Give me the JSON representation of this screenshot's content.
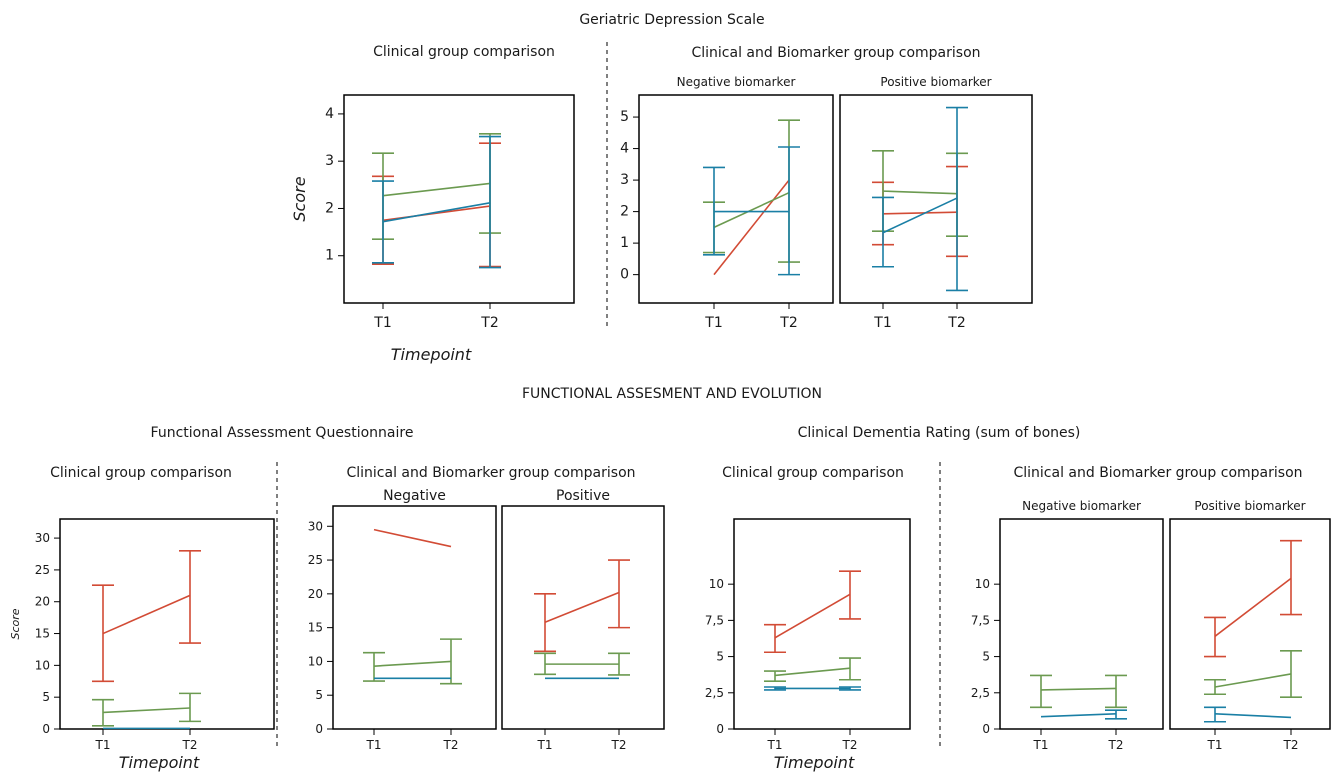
{
  "colors": {
    "red": "#d24b35",
    "green": "#6b9a50",
    "blue": "#1a7fa5"
  },
  "headings": {
    "top": "Geriatric Depression Scale",
    "middle": "FUNCTIONAL ASSESMENT AND EVOLUTION",
    "faq": "Functional Assessment Questionnaire",
    "cdr": "Clinical Dementia Rating (sum of bones)"
  },
  "chart_data": [
    {
      "id": "gds_clinical",
      "type": "line",
      "title": "Clinical group comparison",
      "panel_label": "",
      "categories": [
        "T1",
        "T2"
      ],
      "xlabel": "Timepoint",
      "ylabel": "Score",
      "yticks": [
        "1",
        "2",
        "3",
        "4"
      ],
      "ylim": [
        0,
        4.4
      ],
      "series": [
        {
          "color": "red",
          "values": [
            1.75,
            2.05
          ],
          "err_low": [
            0.82,
            0.77
          ],
          "err_high": [
            2.68,
            3.38
          ]
        },
        {
          "color": "green",
          "values": [
            2.27,
            2.53
          ],
          "err_low": [
            1.35,
            1.48
          ],
          "err_high": [
            3.17,
            3.58
          ]
        },
        {
          "color": "blue",
          "values": [
            1.72,
            2.12
          ],
          "err_low": [
            0.85,
            0.75
          ],
          "err_high": [
            2.58,
            3.52
          ]
        }
      ]
    },
    {
      "id": "gds_neg",
      "type": "line",
      "title": "Clinical and Biomarker group comparison",
      "panel_label": "Negative biomarker",
      "categories": [
        "T1",
        "T2"
      ],
      "xlabel": "",
      "ylabel": "",
      "yticks": [
        "0",
        "1",
        "2",
        "3",
        "4",
        "5"
      ],
      "ylim": [
        -0.9,
        5.7
      ],
      "series": [
        {
          "color": "red",
          "values": [
            0.0,
            3.0
          ],
          "err_low": [
            null,
            null
          ],
          "err_high": [
            null,
            null
          ]
        },
        {
          "color": "green",
          "values": [
            1.5,
            2.6
          ],
          "err_low": [
            0.7,
            0.4
          ],
          "err_high": [
            2.3,
            4.9
          ]
        },
        {
          "color": "blue",
          "values": [
            2.0,
            2.0
          ],
          "err_low": [
            0.63,
            0.0
          ],
          "err_high": [
            3.4,
            4.05
          ]
        }
      ]
    },
    {
      "id": "gds_pos",
      "type": "line",
      "title": "",
      "panel_label": "Positive biomarker",
      "categories": [
        "T1",
        "T2"
      ],
      "xlabel": "",
      "ylabel": "",
      "yticks": [],
      "ylim": [
        -0.9,
        5.7
      ],
      "series": [
        {
          "color": "red",
          "values": [
            1.93,
            1.98
          ],
          "err_low": [
            0.95,
            0.58
          ],
          "err_high": [
            2.93,
            3.43
          ]
        },
        {
          "color": "green",
          "values": [
            2.65,
            2.57
          ],
          "err_low": [
            1.38,
            1.22
          ],
          "err_high": [
            3.93,
            3.85
          ]
        },
        {
          "color": "blue",
          "values": [
            1.33,
            2.43
          ],
          "err_low": [
            0.25,
            -0.5
          ],
          "err_high": [
            2.45,
            5.3
          ]
        }
      ]
    },
    {
      "id": "faq_clinical",
      "type": "line",
      "title": "Clinical group comparison",
      "panel_label": "",
      "categories": [
        "T1",
        "T2"
      ],
      "xlabel": "Timepoint",
      "ylabel": "Score",
      "yticks": [
        "0",
        "5",
        "10",
        "15",
        "20",
        "25",
        "30"
      ],
      "ylim": [
        0,
        33
      ],
      "series": [
        {
          "color": "red",
          "values": [
            15,
            21
          ],
          "err_low": [
            7.5,
            13.5
          ],
          "err_high": [
            22.6,
            28.0
          ]
        },
        {
          "color": "green",
          "values": [
            2.6,
            3.3
          ],
          "err_low": [
            0.5,
            1.2
          ],
          "err_high": [
            4.6,
            5.6
          ]
        },
        {
          "color": "blue",
          "values": [
            0.1,
            0.1
          ],
          "err_low": [
            null,
            null
          ],
          "err_high": [
            null,
            null
          ]
        }
      ]
    },
    {
      "id": "faq_neg",
      "type": "line",
      "title": "Clinical and Biomarker group comparison",
      "panel_label": "Negative",
      "categories": [
        "T1",
        "T2"
      ],
      "xlabel": "",
      "ylabel": "",
      "yticks": [
        "0",
        "5",
        "10",
        "15",
        "20",
        "25",
        "30"
      ],
      "ylim": [
        0,
        33
      ],
      "series": [
        {
          "color": "red",
          "values": [
            29.5,
            27.0
          ],
          "err_low": [
            null,
            null
          ],
          "err_high": [
            null,
            null
          ]
        },
        {
          "color": "green",
          "values": [
            9.3,
            10.0
          ],
          "err_low": [
            7.1,
            6.7
          ],
          "err_high": [
            11.3,
            13.3
          ]
        },
        {
          "color": "blue",
          "values": [
            7.5,
            7.5
          ],
          "err_low": [
            null,
            null
          ],
          "err_high": [
            null,
            null
          ]
        }
      ]
    },
    {
      "id": "faq_pos",
      "type": "line",
      "title": "",
      "panel_label": "Positive",
      "categories": [
        "T1",
        "T2"
      ],
      "xlabel": "",
      "ylabel": "",
      "yticks": [],
      "ylim": [
        0,
        33
      ],
      "series": [
        {
          "color": "red",
          "values": [
            15.8,
            20.2
          ],
          "err_low": [
            11.5,
            15.0
          ],
          "err_high": [
            20.0,
            25.0
          ]
        },
        {
          "color": "green",
          "values": [
            9.6,
            9.6
          ],
          "err_low": [
            8.1,
            8.0
          ],
          "err_high": [
            11.2,
            11.2
          ]
        },
        {
          "color": "blue",
          "values": [
            7.5,
            7.5
          ],
          "err_low": [
            null,
            null
          ],
          "err_high": [
            null,
            null
          ]
        }
      ]
    },
    {
      "id": "cdr_clinical",
      "type": "line",
      "title": "Clinical group comparison",
      "panel_label": "",
      "categories": [
        "T1",
        "T2"
      ],
      "xlabel": "Timepoint",
      "ylabel": "",
      "yticks": [
        "0",
        "2,5",
        "5",
        "7,5",
        "10"
      ],
      "ylim": [
        0,
        14.5
      ],
      "series": [
        {
          "color": "red",
          "values": [
            6.3,
            9.3
          ],
          "err_low": [
            5.3,
            7.6
          ],
          "err_high": [
            7.2,
            10.9
          ]
        },
        {
          "color": "green",
          "values": [
            3.7,
            4.2
          ],
          "err_low": [
            3.3,
            3.4
          ],
          "err_high": [
            4.0,
            4.9
          ]
        },
        {
          "color": "blue",
          "values": [
            2.8,
            2.8
          ],
          "err_low": [
            2.7,
            2.7
          ],
          "err_high": [
            2.9,
            2.9
          ]
        }
      ]
    },
    {
      "id": "cdr_neg",
      "type": "line",
      "title": "Clinical and Biomarker group comparison",
      "panel_label": "Negative biomarker",
      "categories": [
        "T1",
        "T2"
      ],
      "xlabel": "",
      "ylabel": "",
      "yticks": [
        "0",
        "2,5",
        "5",
        "7,5",
        "10"
      ],
      "ylim": [
        0,
        14.5
      ],
      "series": [
        {
          "color": "green",
          "values": [
            2.7,
            2.8
          ],
          "err_low": [
            1.5,
            1.5
          ],
          "err_high": [
            3.7,
            3.7
          ]
        },
        {
          "color": "blue",
          "values": [
            0.85,
            1.05
          ],
          "err_low": [
            null,
            0.7
          ],
          "err_high": [
            null,
            1.3
          ]
        }
      ]
    },
    {
      "id": "cdr_pos",
      "type": "line",
      "title": "",
      "panel_label": "Positive biomarker",
      "categories": [
        "T1",
        "T2"
      ],
      "xlabel": "",
      "ylabel": "",
      "yticks": [],
      "ylim": [
        0,
        14.5
      ],
      "series": [
        {
          "color": "red",
          "values": [
            6.4,
            10.4
          ],
          "err_low": [
            5.0,
            7.9
          ],
          "err_high": [
            7.7,
            13.0
          ]
        },
        {
          "color": "green",
          "values": [
            2.9,
            3.8
          ],
          "err_low": [
            2.4,
            2.2
          ],
          "err_high": [
            3.4,
            5.4
          ]
        },
        {
          "color": "blue",
          "values": [
            1.05,
            0.8
          ],
          "err_low": [
            0.5,
            null
          ],
          "err_high": [
            1.5,
            null
          ]
        }
      ]
    }
  ]
}
